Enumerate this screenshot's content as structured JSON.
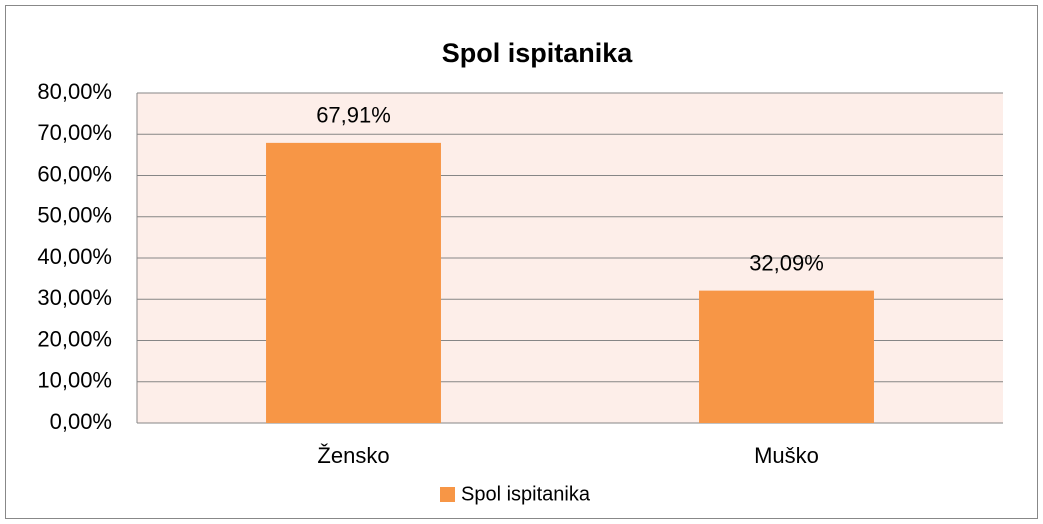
{
  "chart_data": {
    "type": "bar",
    "title": "Spol ispitanika",
    "categories": [
      "Žensko",
      "Muško"
    ],
    "series": [
      {
        "name": "Spol ispitanika",
        "color": "#f79646",
        "values": [
          67.91,
          32.09
        ],
        "value_labels": [
          "67,91%",
          "32,09%"
        ]
      }
    ],
    "ylim": [
      0,
      80
    ],
    "yticks": [
      {
        "value": 0,
        "label": "0,00%"
      },
      {
        "value": 10,
        "label": "10,00%"
      },
      {
        "value": 20,
        "label": "20,00%"
      },
      {
        "value": 30,
        "label": "30,00%"
      },
      {
        "value": 40,
        "label": "40,00%"
      },
      {
        "value": 50,
        "label": "50,00%"
      },
      {
        "value": 60,
        "label": "60,00%"
      },
      {
        "value": 70,
        "label": "70,00%"
      },
      {
        "value": 80,
        "label": "80,00%"
      }
    ],
    "grid": true,
    "legend": "bottom"
  }
}
